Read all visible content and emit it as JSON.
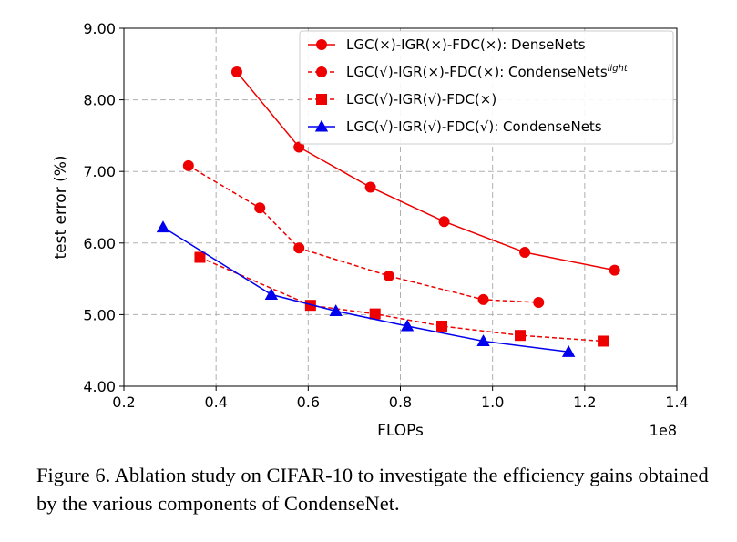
{
  "chart_data": {
    "type": "line",
    "xlabel": "FLOPs",
    "ylabel": "test error (%)",
    "x_scale_label": "1e8",
    "xlim": [
      0.2,
      1.4
    ],
    "ylim": [
      4.0,
      9.0
    ],
    "xticks": [
      0.2,
      0.4,
      0.6,
      0.8,
      1.0,
      1.2,
      1.4
    ],
    "xtick_labels": [
      "0.2",
      "0.4",
      "0.6",
      "0.8",
      "1.0",
      "1.2",
      "1.4"
    ],
    "yticks": [
      4.0,
      5.0,
      6.0,
      7.0,
      8.0,
      9.0
    ],
    "ytick_labels": [
      "4.00",
      "5.00",
      "6.00",
      "7.00",
      "8.00",
      "9.00"
    ],
    "grid": true,
    "legend_position": "top-right",
    "series": [
      {
        "name": "LGC(×)-IGR(×)-FDC(×): DenseNets",
        "legend_main": "LGC(×)-IGR(×)-FDC(×): DenseNets",
        "legend_sup": "",
        "color": "#ee0000",
        "dash": "solid",
        "marker": "circle",
        "x": [
          0.445,
          0.58,
          0.735,
          0.895,
          1.07,
          1.265
        ],
        "y": [
          8.39,
          7.34,
          6.78,
          6.3,
          5.87,
          5.62
        ]
      },
      {
        "name": "LGC(√)-IGR(×)-FDC(×): CondenseNets light",
        "legend_main": "LGC(√)-IGR(×)-FDC(×): CondenseNets",
        "legend_sup": "light",
        "color": "#ee0000",
        "dash": "dashed",
        "marker": "circle",
        "x": [
          0.34,
          0.495,
          0.58,
          0.775,
          0.98,
          1.1
        ],
        "y": [
          7.08,
          6.49,
          5.93,
          5.54,
          5.21,
          5.17
        ]
      },
      {
        "name": "LGC(√)-IGR(√)-FDC(×)",
        "legend_main": "LGC(√)-IGR(√)-FDC(×)",
        "legend_sup": "",
        "color": "#ee0000",
        "dash": "dashed",
        "marker": "square",
        "x": [
          0.365,
          0.605,
          0.745,
          0.89,
          1.06,
          1.24
        ],
        "y": [
          5.8,
          5.13,
          5.01,
          4.84,
          4.71,
          4.63
        ]
      },
      {
        "name": "LGC(√)-IGR(√)-FDC(√): CondenseNets",
        "legend_main": "LGC(√)-IGR(√)-FDC(√): CondenseNets",
        "legend_sup": "",
        "color": "#0000ee",
        "dash": "solid",
        "marker": "triangle",
        "x": [
          0.285,
          0.52,
          0.66,
          0.815,
          0.98,
          1.165
        ],
        "y": [
          6.22,
          5.28,
          5.05,
          4.84,
          4.63,
          4.48
        ]
      }
    ]
  },
  "caption": "Figure 6. Ablation study on CIFAR-10 to investigate the efficiency gains obtained by the various components of CondenseNet."
}
